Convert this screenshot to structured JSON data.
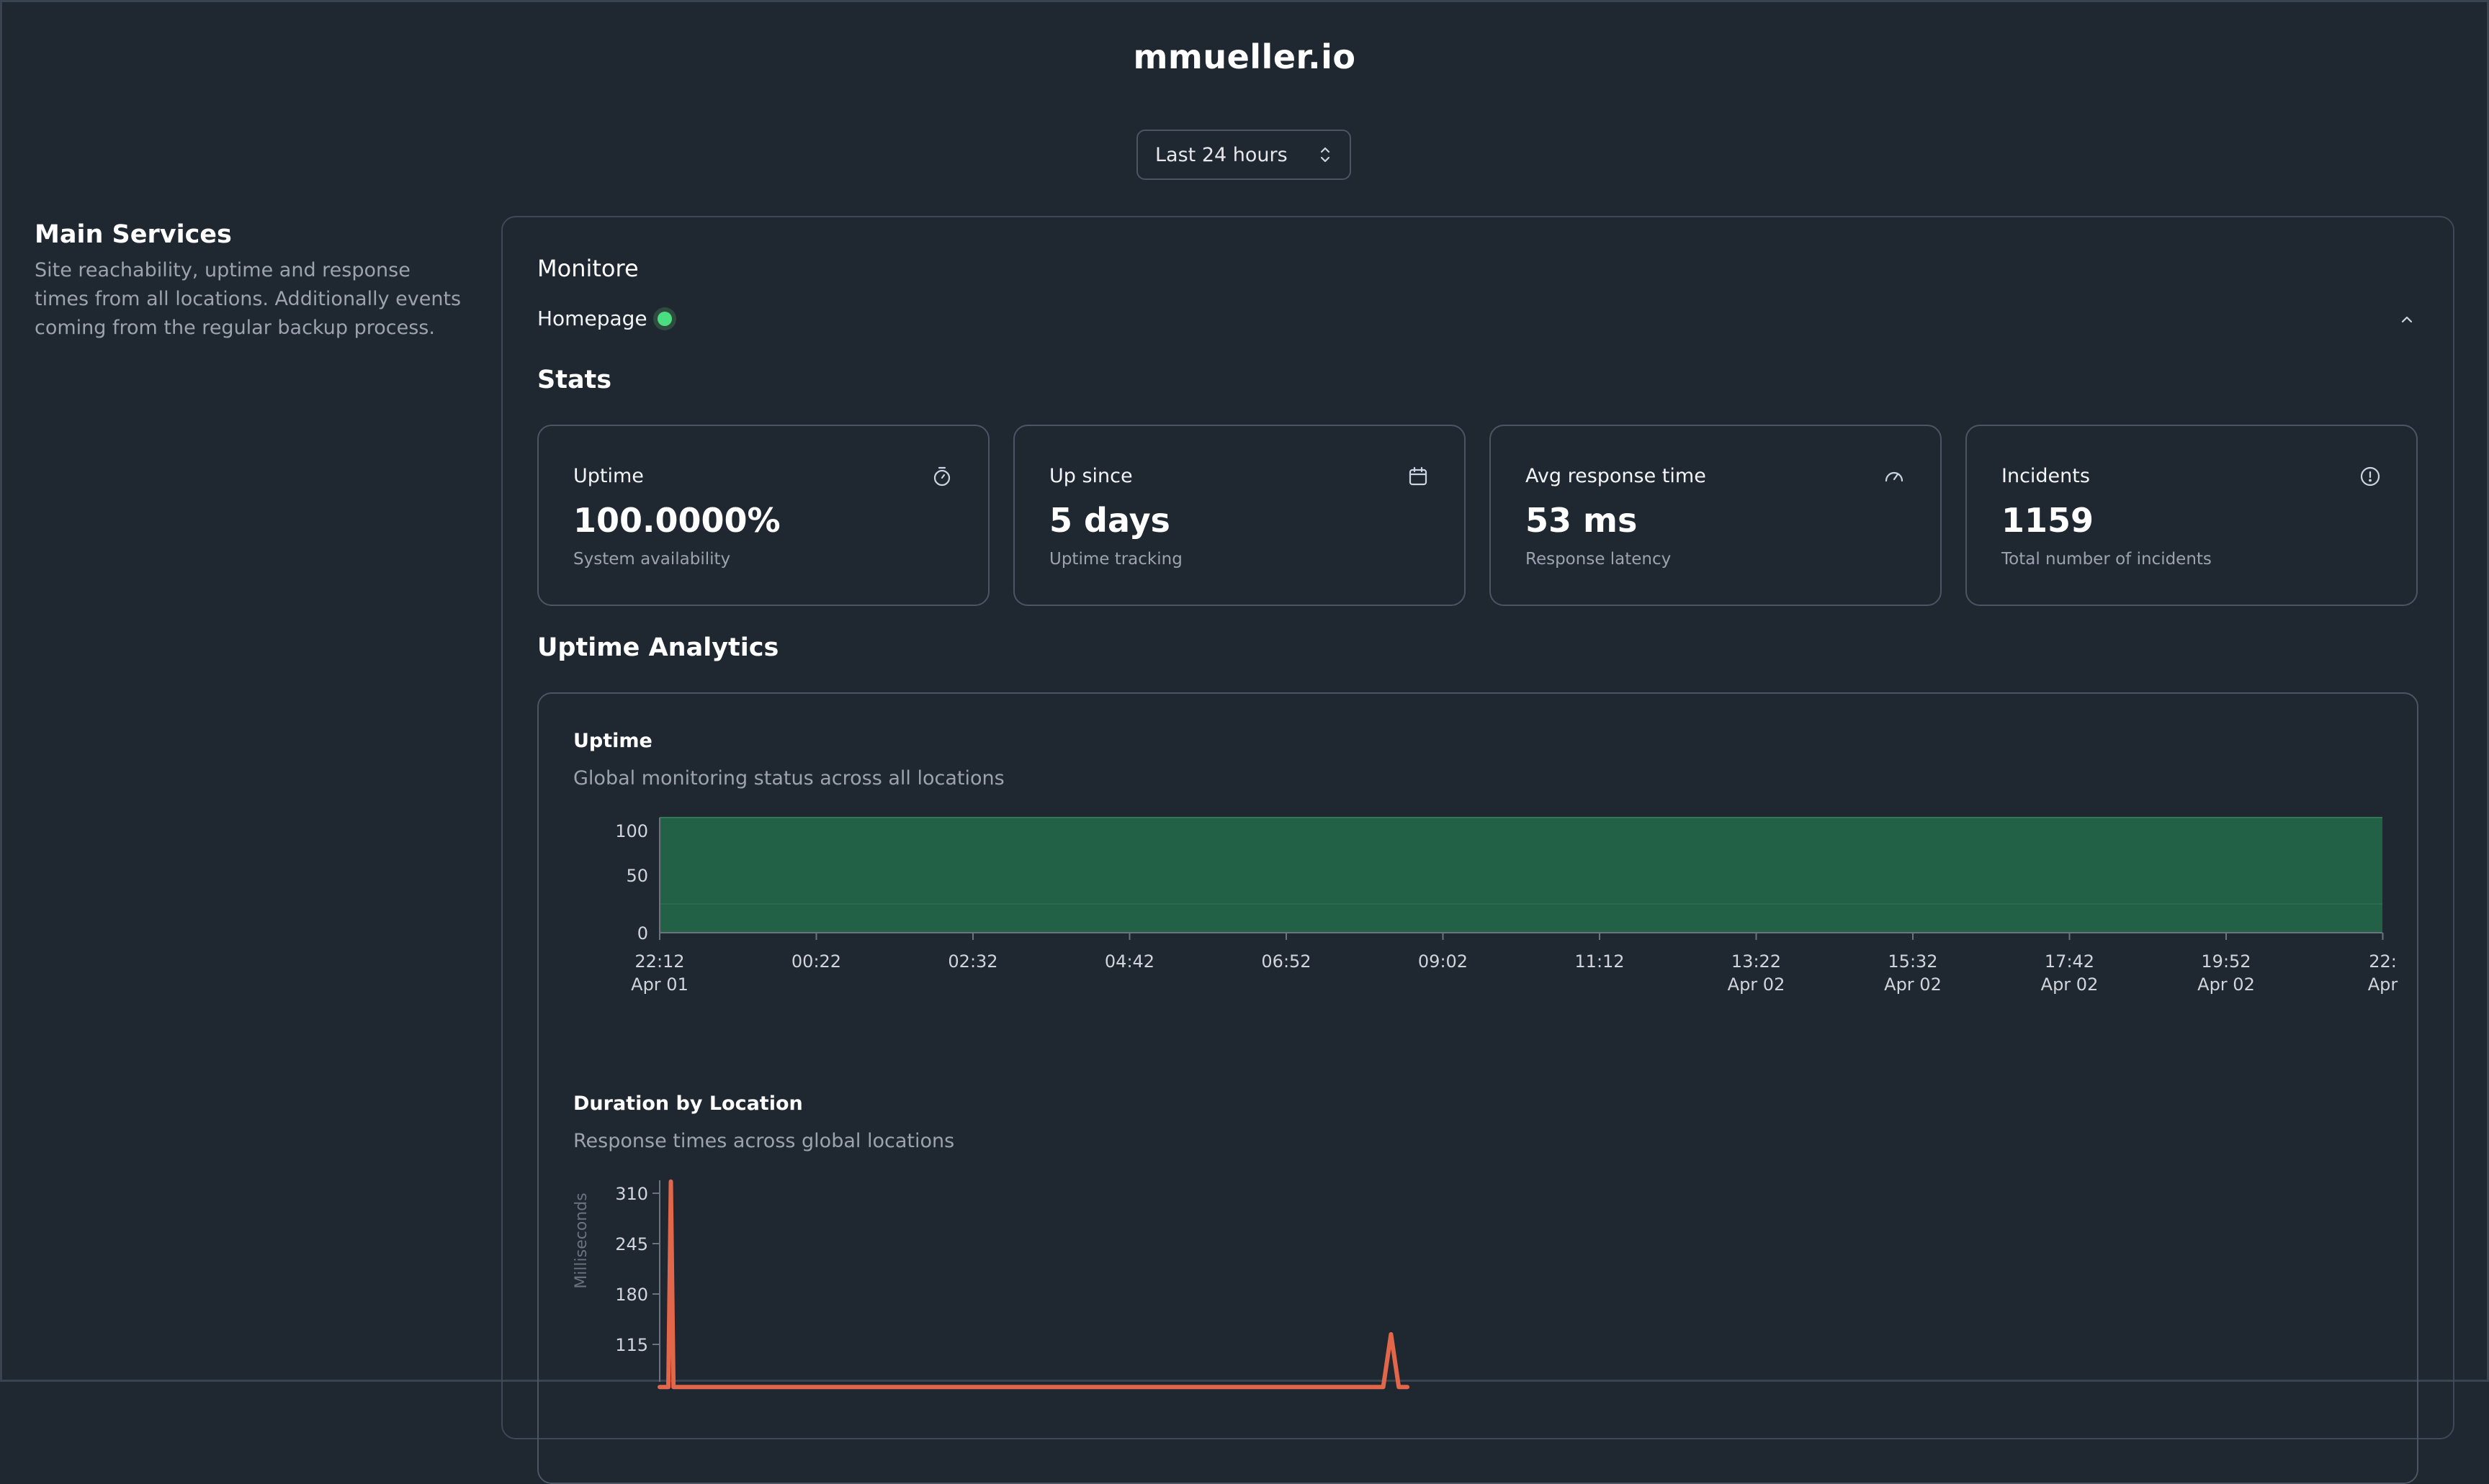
{
  "site": {
    "title": "mmueller.io"
  },
  "range_select": {
    "value": "Last 24 hours"
  },
  "section": {
    "title": "Main Services",
    "description": "Site reachability, uptime and response times from all locations. Additionally events coming from the regular backup process."
  },
  "monitors": {
    "heading": "Monitore",
    "items": [
      {
        "name": "Homepage",
        "status": "up",
        "status_color": "#4ade80"
      }
    ]
  },
  "stats": {
    "heading": "Stats",
    "cards": [
      {
        "label": "Uptime",
        "value": "100.0000%",
        "sub": "System availability",
        "icon": "stopwatch-icon"
      },
      {
        "label": "Up since",
        "value": "5 days",
        "sub": "Uptime tracking",
        "icon": "calendar-icon"
      },
      {
        "label": "Avg response time",
        "value": "53 ms",
        "sub": "Response latency",
        "icon": "gauge-icon"
      },
      {
        "label": "Incidents",
        "value": "1159",
        "sub": "Total number of incidents",
        "icon": "alert-circle-icon"
      }
    ]
  },
  "analytics": {
    "heading": "Uptime Analytics"
  },
  "chart_data": [
    {
      "type": "area",
      "title": "Uptime",
      "subtitle": "Global monitoring status across all locations",
      "ylim": [
        0,
        100
      ],
      "y_ticks": [
        "100",
        "50",
        "0"
      ],
      "x_ticks": [
        {
          "time": "22:12",
          "date": "Apr 01"
        },
        {
          "time": "00:22",
          "date": ""
        },
        {
          "time": "02:32",
          "date": ""
        },
        {
          "time": "04:42",
          "date": ""
        },
        {
          "time": "06:52",
          "date": ""
        },
        {
          "time": "09:02",
          "date": ""
        },
        {
          "time": "11:12",
          "date": ""
        },
        {
          "time": "13:22",
          "date": "Apr 02"
        },
        {
          "time": "15:32",
          "date": "Apr 02"
        },
        {
          "time": "17:42",
          "date": "Apr 02"
        },
        {
          "time": "19:52",
          "date": "Apr 02"
        },
        {
          "time": "22:",
          "date": "Apr"
        }
      ],
      "values": [
        100,
        100,
        100,
        100,
        100,
        100,
        100,
        100,
        100,
        100,
        100,
        100
      ],
      "fill_color": "#236146",
      "grid": true
    },
    {
      "type": "line",
      "title": "Duration by Location",
      "subtitle": "Response times across global locations",
      "ylabel": "Milliseconds",
      "y_ticks": [
        "310",
        "245",
        "180",
        "115"
      ],
      "ylim": [
        0,
        310
      ],
      "x": [
        0,
        0.005,
        0.0065,
        0.008,
        0.013,
        0.42,
        0.4245,
        0.429,
        0.434
      ],
      "series": [
        {
          "values": [
            60,
            60,
            325,
            60,
            60,
            60,
            128,
            60,
            60
          ],
          "color": "#e2674a"
        }
      ]
    }
  ]
}
